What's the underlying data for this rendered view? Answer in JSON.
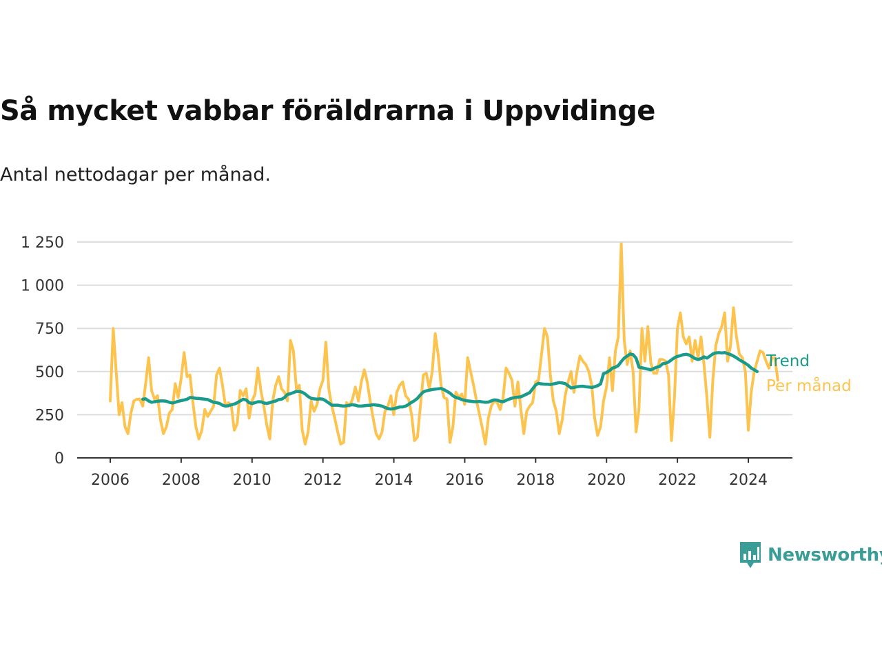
{
  "header": {
    "title": "Så mycket vabbar föräldrarna i Uppvidinge",
    "subtitle": "Antal nettodagar per månad."
  },
  "logo": {
    "text": "Newsworthy",
    "icon": "bar-chart-speech-bubble-icon"
  },
  "colors": {
    "trend": "#1a9a8b",
    "monthly": "#fcc44f",
    "grid": "#dddddd",
    "axis": "#333333",
    "logo": "#3a9e97"
  },
  "chart_data": {
    "type": "line",
    "xlim": [
      2006,
      2024.75
    ],
    "ylim": [
      0,
      1250
    ],
    "yticks": [
      0,
      250,
      500,
      750,
      1000,
      1250
    ],
    "ytick_labels": [
      "0",
      "250",
      "500",
      "750",
      "1 000",
      "1 250"
    ],
    "xticks": [
      2006,
      2008,
      2010,
      2012,
      2014,
      2016,
      2018,
      2020,
      2022,
      2024
    ],
    "xtick_labels": [
      "2006",
      "2008",
      "2010",
      "2012",
      "2014",
      "2016",
      "2018",
      "2020",
      "2022",
      "2024"
    ],
    "grid": true,
    "legend": "line-end labels (right)",
    "series": [
      {
        "name": "Per månad",
        "color": "#fcc44f",
        "x_start": 2006.0,
        "x_step": 0.08333,
        "values": [
          330,
          750,
          500,
          250,
          320,
          180,
          140,
          260,
          330,
          340,
          340,
          300,
          430,
          580,
          390,
          340,
          360,
          220,
          140,
          180,
          260,
          280,
          430,
          350,
          460,
          610,
          470,
          480,
          320,
          180,
          110,
          160,
          280,
          240,
          270,
          300,
          480,
          520,
          420,
          300,
          320,
          300,
          160,
          200,
          390,
          360,
          400,
          230,
          330,
          370,
          520,
          390,
          300,
          190,
          110,
          330,
          420,
          470,
          400,
          380,
          330,
          680,
          620,
          400,
          420,
          160,
          80,
          150,
          330,
          270,
          310,
          400,
          450,
          670,
          400,
          300,
          230,
          150,
          80,
          90,
          320,
          300,
          340,
          410,
          330,
          440,
          510,
          440,
          330,
          230,
          140,
          110,
          150,
          270,
          300,
          360,
          250,
          380,
          420,
          440,
          360,
          340,
          250,
          100,
          120,
          300,
          480,
          490,
          400,
          500,
          720,
          600,
          420,
          350,
          340,
          90,
          180,
          380,
          350,
          370,
          310,
          580,
          500,
          420,
          330,
          250,
          170,
          80,
          230,
          300,
          330,
          320,
          280,
          350,
          520,
          490,
          450,
          300,
          440,
          280,
          140,
          270,
          300,
          320,
          440,
          450,
          600,
          750,
          700,
          480,
          330,
          270,
          140,
          220,
          360,
          440,
          500,
          380,
          500,
          590,
          560,
          540,
          500,
          420,
          230,
          130,
          180,
          330,
          410,
          580,
          390,
          620,
          700,
          1240,
          680,
          540,
          620,
          500,
          150,
          280,
          750,
          560,
          760,
          550,
          490,
          490,
          570,
          570,
          560,
          480,
          100,
          350,
          750,
          840,
          700,
          660,
          700,
          560,
          680,
          580,
          700,
          540,
          350,
          120,
          450,
          650,
          720,
          760,
          840,
          560,
          650,
          870,
          700,
          600,
          580,
          500,
          160,
          380,
          500,
          560,
          620,
          610,
          560,
          520,
          580,
          580,
          450
        ]
      },
      {
        "name": "Trend",
        "color": "#1a9a8b",
        "x_start": 2006.917,
        "x_step": 0.08333,
        "values": [
          340,
          342,
          330,
          322,
          325,
          328,
          330,
          330,
          328,
          322,
          318,
          322,
          328,
          332,
          335,
          340,
          350,
          348,
          345,
          344,
          342,
          340,
          338,
          330,
          322,
          320,
          315,
          305,
          300,
          302,
          308,
          312,
          320,
          330,
          340,
          335,
          320,
          315,
          320,
          325,
          325,
          318,
          315,
          320,
          325,
          330,
          338,
          340,
          350,
          368,
          372,
          378,
          385,
          385,
          380,
          370,
          355,
          345,
          342,
          340,
          342,
          340,
          330,
          318,
          305,
          305,
          305,
          302,
          300,
          302,
          305,
          308,
          305,
          300,
          300,
          302,
          304,
          305,
          308,
          306,
          304,
          300,
          292,
          285,
          283,
          285,
          290,
          295,
          295,
          300,
          310,
          322,
          332,
          345,
          365,
          382,
          388,
          392,
          396,
          398,
          400,
          402,
          395,
          385,
          375,
          360,
          350,
          345,
          338,
          334,
          330,
          328,
          326,
          325,
          327,
          324,
          322,
          323,
          330,
          336,
          334,
          328,
          325,
          333,
          340,
          346,
          350,
          352,
          354,
          362,
          370,
          378,
          400,
          422,
          432,
          428,
          427,
          426,
          425,
          428,
          432,
          436,
          434,
          430,
          418,
          405,
          408,
          412,
          414,
          415,
          412,
          410,
          408,
          412,
          418,
          428,
          488,
          495,
          505,
          520,
          525,
          535,
          558,
          578,
          590,
          602,
          598,
          578,
          525,
          522,
          518,
          514,
          510,
          518,
          525,
          530,
          545,
          548,
          555,
          568,
          580,
          588,
          592,
          598,
          600,
          596,
          586,
          575,
          570,
          575,
          585,
          578,
          590,
          602,
          608,
          610,
          608,
          610,
          604,
          598,
          590,
          580,
          568,
          558,
          548,
          536,
          520,
          510,
          500
        ]
      }
    ]
  }
}
